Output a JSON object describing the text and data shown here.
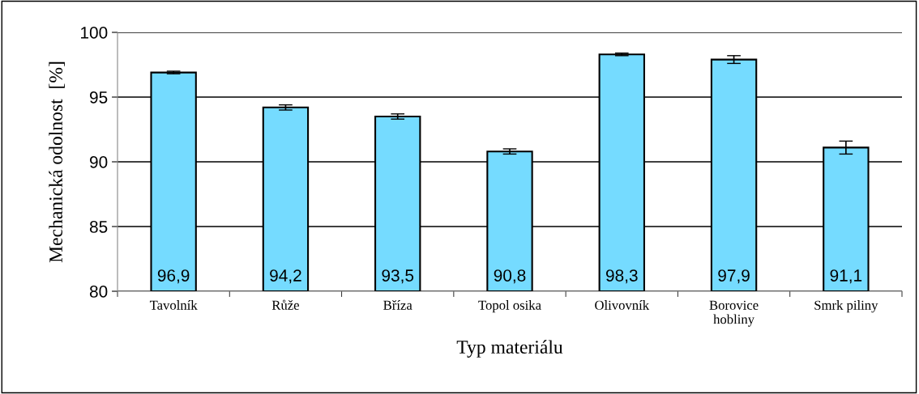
{
  "chart_data": {
    "type": "bar",
    "xlabel": "Typ materiálu",
    "ylabel": "Mechanická odolnost  [%]",
    "categories": [
      "Tavolník",
      "Růže",
      "Bříza",
      "Topol osika",
      "Olivovník",
      "Borovice\nhobliny",
      "Smrk piliny"
    ],
    "values": [
      96.9,
      94.2,
      93.5,
      90.8,
      98.3,
      97.9,
      91.1
    ],
    "value_labels": [
      "96,9",
      "94,2",
      "93,5",
      "90,8",
      "98,3",
      "97,9",
      "91,1"
    ],
    "errors": [
      0.1,
      0.2,
      0.2,
      0.2,
      0.1,
      0.3,
      0.5
    ],
    "color": "#75dbff",
    "ylim": [
      80,
      100
    ],
    "yticks": [
      80,
      85,
      90,
      95,
      100
    ],
    "grid": "y"
  }
}
